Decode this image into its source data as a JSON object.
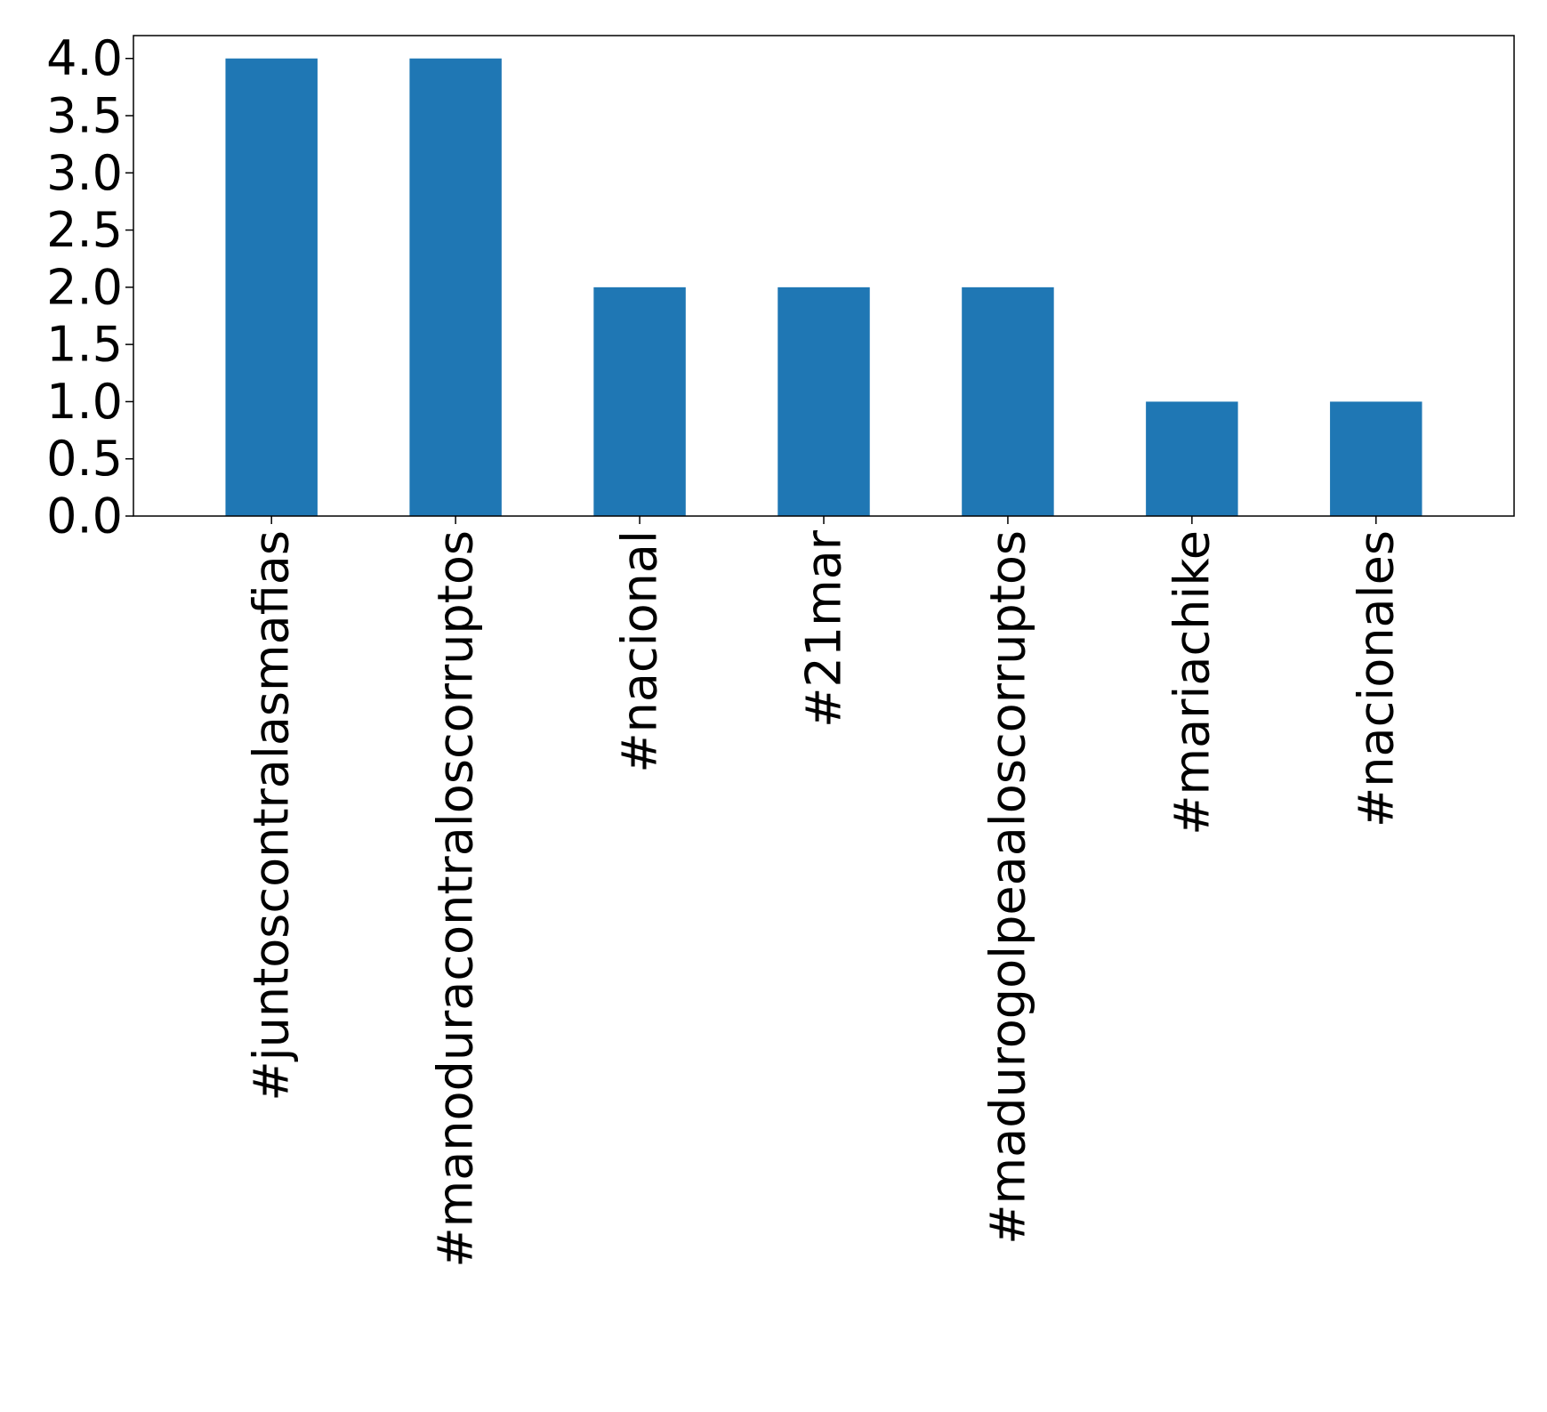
{
  "chart_data": {
    "type": "bar",
    "categories": [
      "#juntoscontralasmafias",
      "#manoduracontraloscorruptos",
      "#nacional",
      "#21mar",
      "#madurogolpeaaloscorruptos",
      "#mariachike",
      "#nacionales"
    ],
    "values": [
      4,
      4,
      2,
      2,
      2,
      1,
      1
    ],
    "ylim": [
      0,
      4.2
    ],
    "yticks": [
      "0.0",
      "0.5",
      "1.0",
      "1.5",
      "2.0",
      "2.5",
      "3.0",
      "3.5",
      "4.0"
    ],
    "title": "",
    "xlabel": "",
    "ylabel": "",
    "bar_color": "#1f77b4",
    "grid": false,
    "legend": "none"
  }
}
